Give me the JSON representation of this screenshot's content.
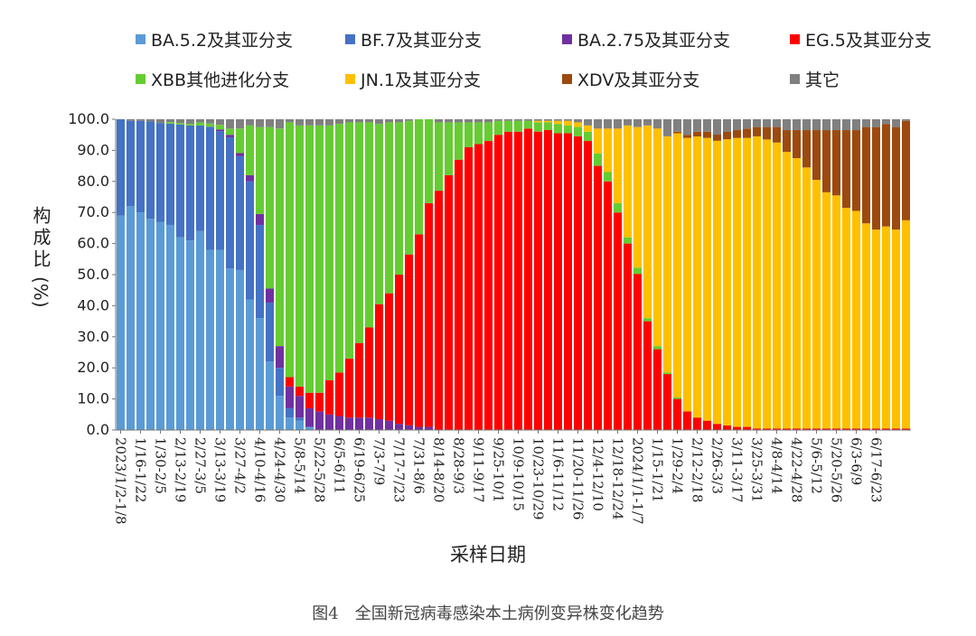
{
  "chart_data": {
    "type": "stacked-bar-100",
    "ylabel": "构成比",
    "yunit": "(%)",
    "xlabel": "采样日期",
    "caption": "图4　全国新冠病毒感染本土病例变异株变化趋势",
    "ylim": [
      0,
      100
    ],
    "yticks": [
      "0.0",
      "10.0",
      "20.0",
      "30.0",
      "40.0",
      "50.0",
      "60.0",
      "70.0",
      "80.0",
      "90.0",
      "100.0"
    ],
    "legend_position": "top",
    "n_bars": 80,
    "xtick_labels": [
      "2023/1/2-1/8",
      "1/16-1/22",
      "1/30-2/5",
      "2/13-2/19",
      "2/27-3/5",
      "3/13-3/19",
      "3/27-4/2",
      "4/10-4/16",
      "4/24-4/30",
      "5/8-5/14",
      "5/22-5/28",
      "6/5-6/11",
      "6/19-6/25",
      "7/3-7/9",
      "7/17-7/23",
      "7/31-8/6",
      "8/14-8/20",
      "8/28-9/3",
      "9/11-9/17",
      "9/25-10/1",
      "10/9-10/15",
      "10/23-10/29",
      "11/6-11/12",
      "11/20-11/26",
      "12/4-12/10",
      "12/18-12/24",
      "2024/1/1-1/7",
      "1/15-1/21",
      "1/29-2/4",
      "2/12-2/18",
      "2/26-3/3",
      "3/11-3/17",
      "3/25-3/31",
      "4/8-4/14",
      "4/22-4/28",
      "5/6-5/12",
      "5/20-5/26",
      "6/3-6/9",
      "6/17-6/23"
    ],
    "series": [
      {
        "name": "BA.5.2及其亚分支",
        "color": "#5B9BD5",
        "values": [
          69,
          72,
          70,
          68,
          67,
          66,
          62,
          61,
          64,
          58,
          58,
          52,
          52,
          42,
          36,
          22,
          11,
          4,
          3,
          1,
          0,
          0,
          0,
          0,
          0,
          0,
          0,
          0,
          0,
          0,
          0,
          0,
          0,
          0,
          0,
          0,
          0,
          0,
          0,
          0,
          0,
          0,
          0,
          0,
          0,
          0,
          0,
          0,
          0,
          0,
          0,
          0,
          0,
          0,
          0,
          0,
          0,
          0,
          0,
          0,
          0,
          0,
          0,
          0,
          0,
          0,
          0,
          0,
          0,
          0,
          0,
          0,
          0,
          0,
          0,
          0,
          0,
          0,
          0,
          0
        ]
      },
      {
        "name": "BF.7及其亚分支",
        "color": "#4472C4",
        "values": [
          31,
          27.5,
          29.5,
          31.3,
          31.8,
          32.6,
          36.3,
          37,
          34,
          39.6,
          38.2,
          42.2,
          37,
          38,
          30,
          19,
          9,
          3,
          1,
          0,
          0,
          0,
          0,
          0,
          0,
          0,
          0,
          0,
          0,
          0,
          0,
          0,
          0,
          0,
          0,
          0,
          0,
          0,
          0,
          0,
          0,
          0,
          0,
          0,
          0,
          0,
          0,
          0,
          0,
          0,
          0,
          0,
          0,
          0,
          0,
          0,
          0,
          0,
          0,
          0,
          0,
          0,
          0,
          0,
          0,
          0,
          0,
          0,
          0,
          0,
          0,
          0,
          0,
          0,
          0,
          0,
          0,
          0,
          0,
          0
        ]
      },
      {
        "name": "BA.2.75及其亚分支",
        "color": "#7030A0",
        "values": [
          0,
          0,
          0,
          0,
          0,
          0,
          0,
          0,
          0,
          0,
          0.5,
          0.8,
          1,
          2,
          3.5,
          4.5,
          7,
          7,
          7,
          6,
          6,
          5,
          4.5,
          4,
          4,
          4,
          3.5,
          3,
          2,
          1.5,
          1,
          1,
          0,
          0,
          0,
          0,
          0,
          0,
          0,
          0,
          0,
          0,
          0,
          0,
          0,
          0,
          0,
          0,
          0,
          0,
          0,
          0,
          0,
          0,
          0,
          0,
          0,
          0,
          0,
          0,
          0,
          0,
          0,
          0,
          0,
          0,
          0,
          0,
          0,
          0,
          0,
          0,
          0,
          0,
          0,
          0,
          0,
          0,
          0,
          0
        ]
      },
      {
        "name": "EG.5及其亚分支",
        "color": "#FF0000",
        "values": [
          0,
          0,
          0,
          0,
          0,
          0,
          0,
          0,
          0,
          0,
          0,
          0,
          0,
          0,
          0,
          0,
          0,
          3,
          3,
          5,
          6,
          11,
          14,
          19,
          24,
          29,
          37,
          41,
          48,
          55,
          62,
          72,
          77,
          82,
          87,
          91,
          92,
          93,
          95,
          96,
          96,
          97,
          96.5,
          97,
          96,
          96,
          95,
          93,
          85,
          80,
          70,
          60,
          50,
          35,
          26,
          18,
          10,
          6,
          4,
          3,
          2,
          1.5,
          1,
          1,
          0.5,
          0.5,
          0.5,
          0.5,
          0.5,
          0.5,
          0.5,
          0.5,
          0.5,
          0.5,
          0.5,
          0.5,
          0.5,
          0.5,
          0.5,
          0.5
        ]
      },
      {
        "name": "XBB其他进化分支",
        "color": "#66CC33",
        "values": [
          0,
          0,
          0,
          0,
          0,
          0.5,
          0.5,
          0.5,
          1,
          1,
          1.5,
          2,
          8,
          16,
          28,
          52,
          70,
          82,
          84,
          86,
          86,
          82,
          80,
          76,
          71,
          66,
          58,
          55,
          49,
          43,
          37,
          27,
          22,
          17,
          12,
          8,
          7,
          6,
          4.5,
          3.5,
          3.5,
          2.5,
          3,
          2.5,
          3,
          2.5,
          3,
          3,
          4,
          3,
          3,
          2,
          2,
          1,
          1,
          0.5,
          0.5,
          0,
          0,
          0,
          0,
          0,
          0,
          0,
          0,
          0,
          0,
          0,
          0,
          0,
          0,
          0,
          0,
          0,
          0,
          0,
          0,
          0,
          0,
          0
        ]
      },
      {
        "name": "JN.1及其亚分支",
        "color": "#FFC000",
        "values": [
          0,
          0,
          0,
          0,
          0,
          0,
          0,
          0,
          0,
          0,
          0,
          0,
          0,
          0,
          0,
          0,
          0,
          0,
          0,
          0,
          0,
          0,
          0,
          0,
          0,
          0,
          0,
          0,
          0,
          0,
          0,
          0,
          0,
          0,
          0,
          0,
          0,
          0,
          0,
          0,
          0,
          0,
          0.5,
          0.5,
          1,
          1.5,
          1.5,
          2,
          8,
          14,
          24,
          36,
          45,
          62,
          70,
          76,
          85,
          88,
          90,
          91,
          92,
          93,
          93,
          93,
          94,
          93,
          92,
          89,
          87,
          84,
          80,
          76,
          75,
          71,
          70,
          66,
          64,
          65,
          64,
          67
        ]
      },
      {
        "name": "XDV及其亚分支",
        "color": "#9C4A0F",
        "values": [
          0,
          0,
          0,
          0,
          0,
          0,
          0,
          0,
          0,
          0,
          0,
          0,
          0,
          0,
          0,
          0,
          0,
          0,
          0,
          0,
          0,
          0,
          0,
          0,
          0,
          0,
          0,
          0,
          0,
          0,
          0,
          0,
          0,
          0,
          0,
          0,
          0,
          0,
          0,
          0,
          0,
          0,
          0,
          0,
          0,
          0,
          0,
          0,
          0,
          0,
          0,
          0,
          0,
          0,
          0,
          0,
          0.5,
          1,
          1.5,
          2,
          2,
          2.5,
          2.5,
          3,
          3,
          4,
          5,
          7,
          9,
          12,
          16,
          20,
          21,
          25,
          26,
          31,
          33,
          33,
          33,
          32
        ]
      },
      {
        "name": "其它",
        "color": "#808080",
        "values": [
          0,
          0.5,
          0.5,
          0.7,
          1.2,
          0.9,
          1.2,
          1.5,
          1,
          1.4,
          1.8,
          3,
          3,
          2,
          2.5,
          2.5,
          3,
          1,
          2,
          2,
          2,
          2,
          1.5,
          1,
          1,
          1,
          1.5,
          1,
          1,
          0.5,
          0,
          0,
          1,
          1,
          1,
          1,
          1,
          1,
          0.5,
          0.5,
          0.5,
          0.5,
          0.5,
          0.5,
          0.5,
          0.5,
          1,
          2,
          3,
          3,
          3,
          2,
          2.5,
          2,
          3,
          5.5,
          4,
          5,
          4,
          4,
          5,
          4,
          3.5,
          3,
          2.5,
          2.5,
          2.5,
          3.5,
          3.5,
          3.5,
          3.5,
          3.5,
          3.5,
          3.5,
          3.5,
          2.5,
          2.5,
          1.5,
          2.5,
          0.5
        ]
      }
    ]
  }
}
